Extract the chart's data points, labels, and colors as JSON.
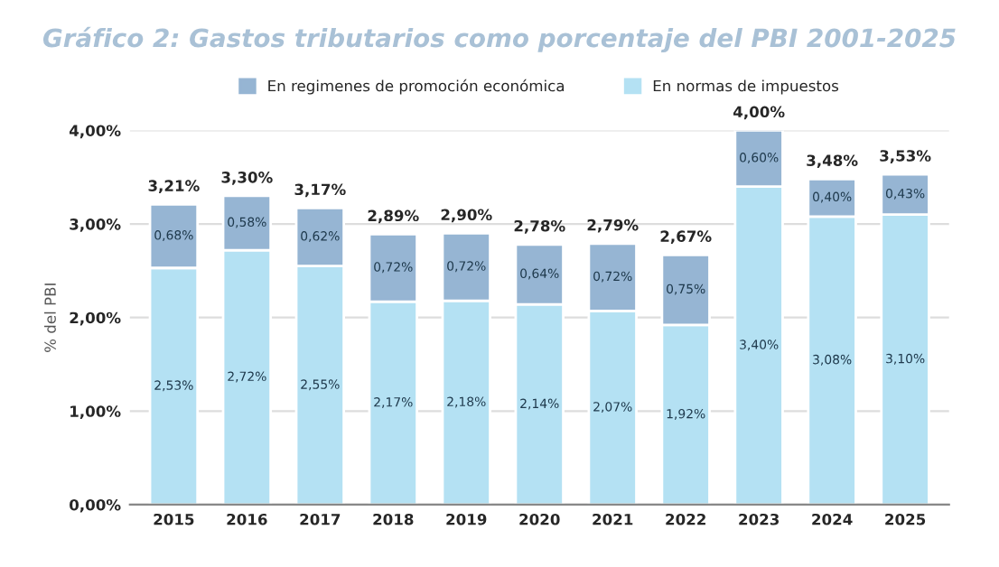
{
  "chart_data": {
    "type": "bar",
    "stacked": true,
    "title": "Gráfico 2: Gastos tributarios como porcentaje del PBI 2001-2025",
    "ylabel": "% del PBI",
    "categories": [
      "2015",
      "2016",
      "2017",
      "2018",
      "2019",
      "2020",
      "2021",
      "2022",
      "2023",
      "2024",
      "2025"
    ],
    "series": [
      {
        "name": "En normas de impuestos",
        "color": "#b4e1f3",
        "values": [
          2.53,
          2.72,
          2.55,
          2.17,
          2.18,
          2.14,
          2.07,
          1.92,
          3.4,
          3.08,
          3.1
        ],
        "value_labels": [
          "2,53%",
          "2,72%",
          "2,55%",
          "2,17%",
          "2,18%",
          "2,14%",
          "2,07%",
          "1,92%",
          "3,40%",
          "3,08%",
          "3,10%"
        ]
      },
      {
        "name": "En regimenes de promoción económica",
        "color": "#96b5d3",
        "values": [
          0.68,
          0.58,
          0.62,
          0.72,
          0.72,
          0.64,
          0.72,
          0.75,
          0.6,
          0.4,
          0.43
        ],
        "value_labels": [
          "0,68%",
          "0,58%",
          "0,62%",
          "0,72%",
          "0,72%",
          "0,64%",
          "0,72%",
          "0,75%",
          "0,60%",
          "0,40%",
          "0,43%"
        ]
      }
    ],
    "totals": [
      "3,21%",
      "3,30%",
      "3,17%",
      "2,89%",
      "2,90%",
      "2,78%",
      "2,79%",
      "2,67%",
      "4,00%",
      "3,48%",
      "3,53%"
    ],
    "ylim": [
      0,
      4.0
    ],
    "yticks": [
      {
        "value": 0,
        "label": "0,00%"
      },
      {
        "value": 1,
        "label": "1,00%"
      },
      {
        "value": 2,
        "label": "2,00%"
      },
      {
        "value": 3,
        "label": "3,00%"
      },
      {
        "value": 4,
        "label": "4,00%"
      }
    ],
    "grid": "y",
    "legend": "top"
  }
}
